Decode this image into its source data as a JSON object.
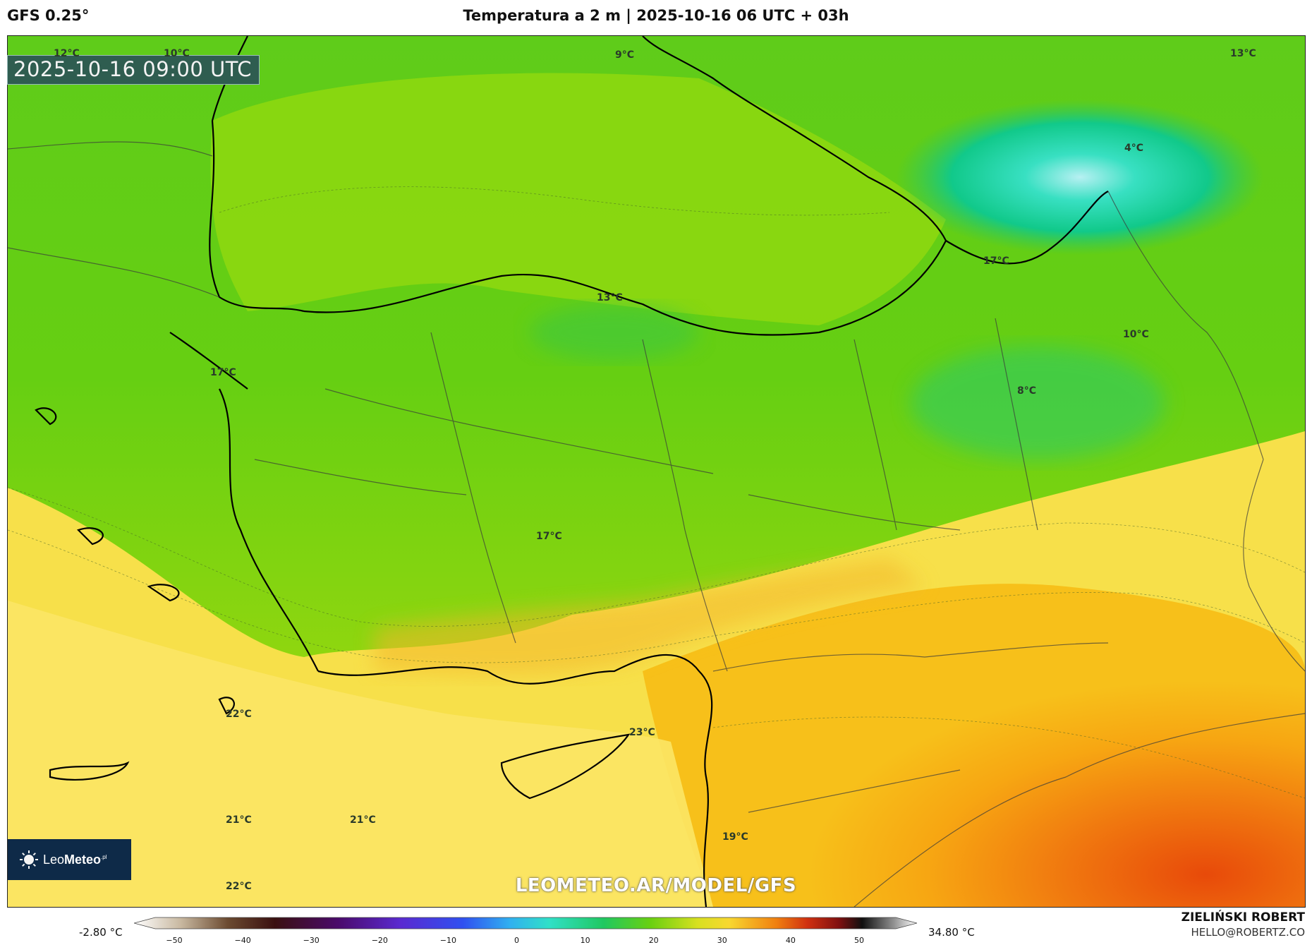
{
  "header": {
    "model": "GFS 0.25°",
    "title": "Temperatura a 2 m | 2025-10-16 06 UTC + 03h"
  },
  "map": {
    "valid_time": "2025-10-16 09:00 UTC",
    "watermark": "LEOMETEO.AR/MODEL/GFS",
    "labels": [
      {
        "text": "12°C"
      },
      {
        "text": "10°C"
      },
      {
        "text": "9°C"
      },
      {
        "text": "13°C"
      },
      {
        "text": "4°C"
      },
      {
        "text": "17°C"
      },
      {
        "text": "13°C"
      },
      {
        "text": "10°C"
      },
      {
        "text": "17°C"
      },
      {
        "text": "8°C"
      },
      {
        "text": "17°C"
      },
      {
        "text": "22°C"
      },
      {
        "text": "23°C"
      },
      {
        "text": "21°C"
      },
      {
        "text": "21°C"
      },
      {
        "text": "19°C"
      },
      {
        "text": "22°C"
      }
    ]
  },
  "logo": {
    "name": "LeoMeteo",
    "part1": "Leo",
    "part2": "Meteo",
    "suffix": ".pl"
  },
  "colorbar": {
    "min_label": "-2.80 °C",
    "max_label": "34.80 °C",
    "ticks": [
      "−50",
      "−40",
      "−30",
      "−20",
      "−10",
      "0",
      "10",
      "20",
      "30",
      "40",
      "50"
    ],
    "range": [
      -50,
      50
    ]
  },
  "author": {
    "name": "ZIELIŃSKI ROBERT",
    "email": "HELLO@ROBERTZ.CO"
  }
}
